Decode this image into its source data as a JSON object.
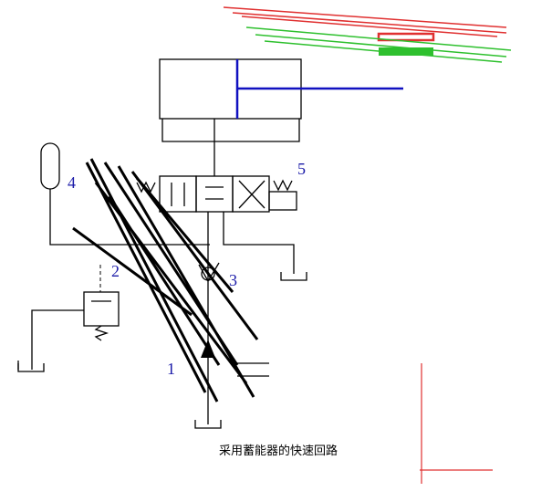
{
  "labels": {
    "valve": "5",
    "accumulator": "4",
    "relief": "2",
    "check": "3",
    "pump": "1"
  },
  "caption": "采用蓄能器的快速回路"
}
